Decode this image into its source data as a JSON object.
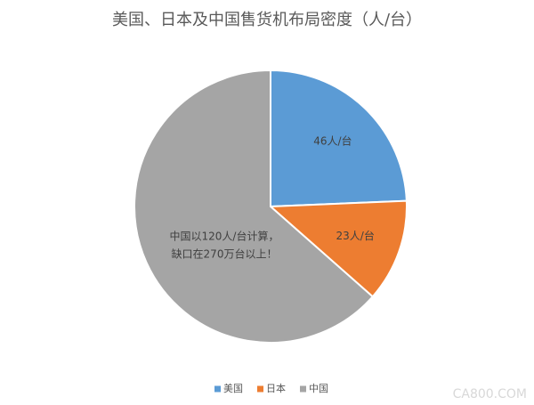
{
  "chart_data": {
    "type": "pie",
    "title": "美国、日本及中国售货机布局密度（人/台）",
    "categories": [
      "美国",
      "日本",
      "中国"
    ],
    "values": [
      46,
      23,
      120
    ],
    "value_labels": [
      "46人/台",
      "23人/台",
      null
    ],
    "colors": [
      "#5b9bd5",
      "#ed7d31",
      "#a5a5a5"
    ],
    "annotation": [
      "中国以120人/台计算，",
      "缺口在270万台以上！"
    ],
    "legend": "bottom",
    "watermark": "CA800.COM"
  }
}
